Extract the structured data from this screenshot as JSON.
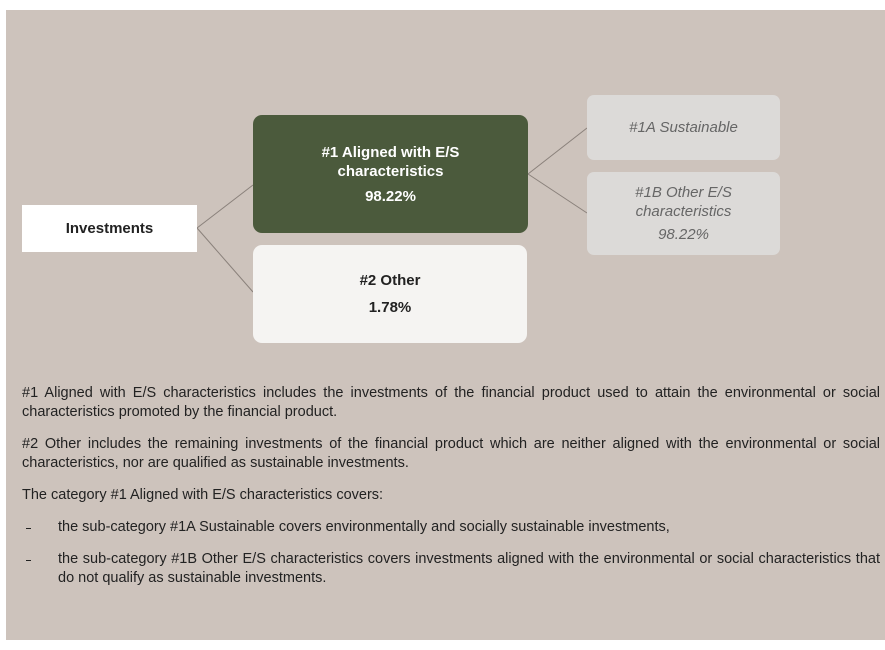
{
  "nodes": [
    {
      "label": "Investments"
    },
    {
      "label": "#1 Aligned with E/S characteristics",
      "value": "98.22%"
    },
    {
      "label": "#2 Other",
      "value": "1.78%"
    },
    {
      "label": "#1A Sustainable"
    },
    {
      "label": "#1B Other E/S characteristics",
      "value": "98.22%"
    }
  ],
  "paragraphs": [
    "#1 Aligned with E/S characteristics includes the investments of the financial product used to attain the environmental or social characteristics promoted by the financial product.",
    "#2 Other includes the remaining investments of the financial product which are neither aligned with the environmental or social characteristics, nor are qualified as sustainable investments.",
    "The category #1 Aligned with E/S characteristics covers:"
  ],
  "bullets": [
    "the sub-category #1A Sustainable covers environmentally and socially sustainable investments,",
    "the sub-category #1B Other E/S characteristics covers investments aligned with the environmental or social characteristics that do not qualify as sustainable investments."
  ]
}
